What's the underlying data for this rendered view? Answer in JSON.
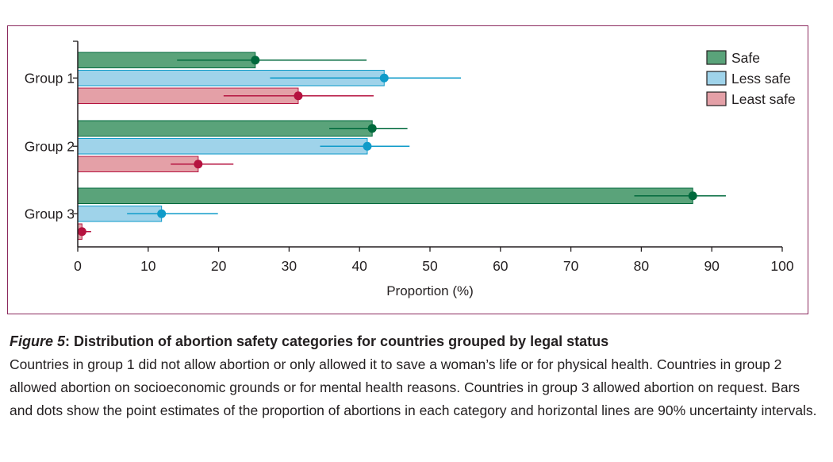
{
  "chart_data": {
    "type": "bar",
    "orientation": "horizontal",
    "categories": [
      "Group 1",
      "Group 2",
      "Group 3"
    ],
    "series": [
      {
        "name": "Safe",
        "color": "#5aa37a",
        "dot_color": "#00693c",
        "values": [
          25.2,
          41.8,
          87.3
        ],
        "ci_low": [
          14.1,
          35.7,
          79.0
        ],
        "ci_high": [
          41.0,
          46.8,
          92.0
        ]
      },
      {
        "name": "Less safe",
        "color": "#9fd3ea",
        "dot_color": "#0f9bc9",
        "values": [
          43.5,
          41.1,
          11.9
        ],
        "ci_low": [
          27.3,
          34.4,
          7.0
        ],
        "ci_high": [
          54.4,
          47.1,
          19.9
        ]
      },
      {
        "name": "Least safe",
        "color": "#e4a0a7",
        "dot_color": "#b5123f",
        "values": [
          31.3,
          17.1,
          0.6
        ],
        "ci_low": [
          20.7,
          13.2,
          0.1
        ],
        "ci_high": [
          42.0,
          22.1,
          1.9
        ]
      }
    ],
    "xlabel": "Proportion (%)",
    "xlim": [
      0,
      100
    ],
    "xticks": [
      0,
      10,
      20,
      30,
      40,
      50,
      60,
      70,
      80,
      90,
      100
    ],
    "legend_position": "top-right"
  },
  "caption": {
    "figure_label": "Figure 5",
    "title": ": Distribution of abortion safety categories for countries grouped by legal status",
    "body": "Countries in group 1 did not allow abortion or only allowed it to save a woman’s life or for physical health. Countries in group 2 allowed abortion on socioeconomic grounds or for mental health reasons. Countries in group 3 allowed abortion on request. Bars and dots show the point estimates of the proportion of abortions in each category and horizontal lines are 90% uncertainty intervals."
  }
}
